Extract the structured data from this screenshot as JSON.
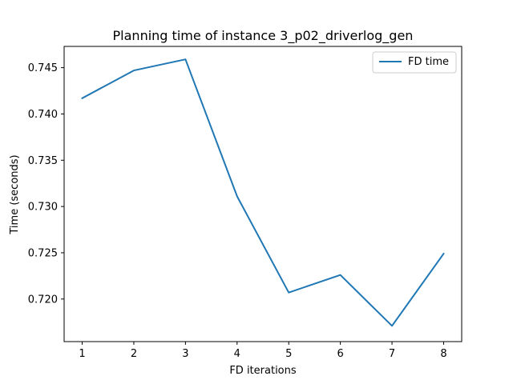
{
  "chart_data": {
    "type": "line",
    "title": "Planning time of instance 3_p02_driverlog_gen",
    "xlabel": "FD iterations",
    "ylabel": "Time (seconds)",
    "x": [
      1,
      2,
      3,
      4,
      5,
      6,
      7,
      8
    ],
    "x_ticks": [
      "1",
      "2",
      "3",
      "4",
      "5",
      "6",
      "7",
      "8"
    ],
    "y_ticks": [
      "0.720",
      "0.725",
      "0.730",
      "0.735",
      "0.740",
      "0.745"
    ],
    "xlim": [
      0.65,
      8.35
    ],
    "ylim": [
      0.7154,
      0.7473
    ],
    "grid": false,
    "legend_position": "top-right",
    "series": [
      {
        "name": "FD time",
        "color": "#1f77b4",
        "values": [
          0.7417,
          0.7447,
          0.7459,
          0.7311,
          0.7207,
          0.7226,
          0.7171,
          0.7249
        ]
      }
    ]
  }
}
